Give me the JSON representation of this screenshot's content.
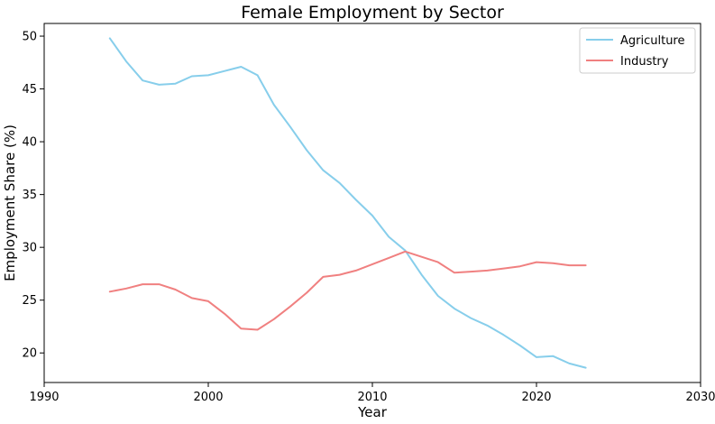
{
  "chart_data": {
    "type": "line",
    "title": "Female Employment by Sector",
    "xlabel": "Year",
    "ylabel": "Employment Share (%)",
    "xlim": [
      1990,
      2030
    ],
    "ylim": [
      17.2,
      51.2
    ],
    "xticks": [
      1990,
      2000,
      2010,
      2020,
      2030
    ],
    "yticks": [
      20,
      25,
      30,
      35,
      40,
      45,
      50
    ],
    "grid": false,
    "legend_position": "top-right",
    "x": [
      1994,
      1995,
      1996,
      1997,
      1998,
      1999,
      2000,
      2001,
      2002,
      2003,
      2004,
      2005,
      2006,
      2007,
      2008,
      2009,
      2010,
      2011,
      2012,
      2013,
      2014,
      2015,
      2016,
      2017,
      2018,
      2019,
      2020,
      2021,
      2022,
      2023
    ],
    "series": [
      {
        "name": "Agriculture",
        "color": "#87ceeb",
        "values": [
          49.8,
          47.6,
          45.8,
          45.4,
          45.5,
          46.2,
          46.3,
          46.7,
          47.1,
          46.3,
          43.5,
          41.4,
          39.2,
          37.3,
          36.1,
          34.5,
          33.0,
          31.0,
          29.7,
          27.4,
          25.4,
          24.2,
          23.3,
          22.6,
          21.7,
          20.7,
          19.6,
          19.7,
          19.0,
          18.6
        ]
      },
      {
        "name": "Industry",
        "color": "#f08080",
        "values": [
          25.8,
          26.1,
          26.5,
          26.5,
          26.0,
          25.2,
          24.9,
          23.7,
          22.3,
          22.2,
          23.2,
          24.4,
          25.7,
          27.2,
          27.4,
          27.8,
          28.4,
          29.0,
          29.6,
          29.1,
          28.6,
          27.6,
          27.7,
          27.8,
          28.0,
          28.2,
          28.6,
          28.5,
          28.3,
          28.3
        ]
      }
    ]
  }
}
